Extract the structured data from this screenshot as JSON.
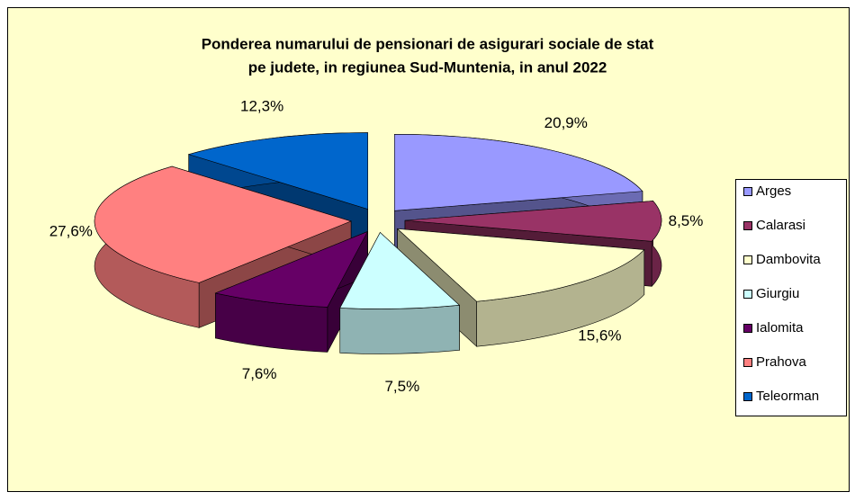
{
  "chart_data": {
    "type": "pie3d",
    "title": [
      "Ponderea numarului  de pensionari de asigurari  sociale de stat",
      "pe judete, in regiunea  Sud-Muntenia, in anul  2022"
    ],
    "categories": [
      "Arges",
      "Calarasi",
      "Dambovita",
      "Giurgiu",
      "Ialomita",
      "Prahova",
      "Teleorman"
    ],
    "values": [
      20.9,
      8.5,
      15.6,
      7.5,
      7.6,
      27.6,
      12.3
    ],
    "value_labels": [
      "20,9%",
      "8,5%",
      "15,6%",
      "7,5%",
      "7,6%",
      "27,6%",
      "12,3%"
    ],
    "colors": [
      "#9999ff",
      "#993366",
      "#ffffcc",
      "#ccffff",
      "#660066",
      "#ff8080",
      "#0066cc"
    ],
    "legend": "right"
  }
}
